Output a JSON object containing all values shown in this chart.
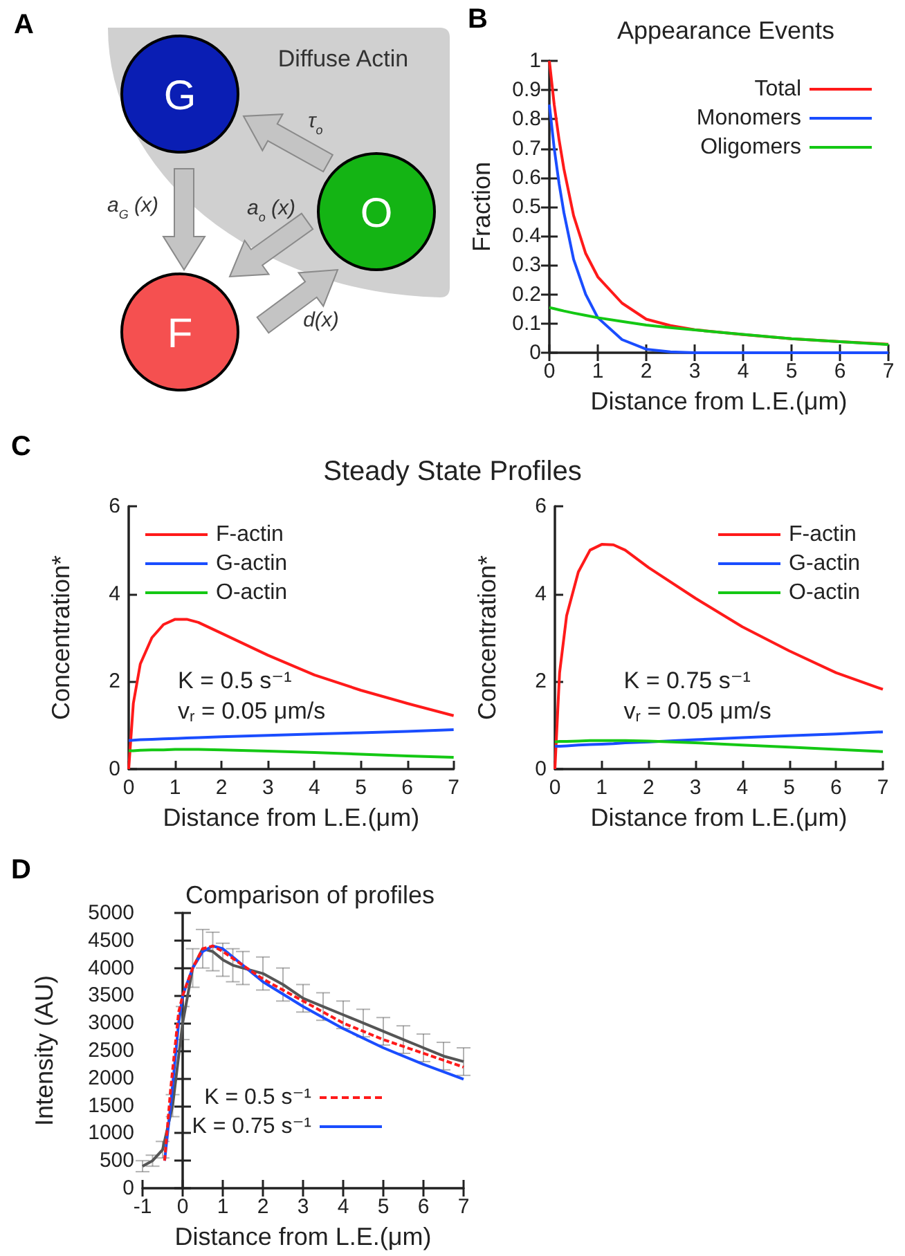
{
  "chart_data": [
    {
      "type": "other",
      "colors": [
        "#0a1eb4",
        "#14b414",
        "#f55050"
      ],
      "annotations": [
        "A",
        "Diffuse Actin",
        "G",
        "O",
        "F",
        "τ$_{o}$",
        "a$_{G}$ (x)",
        "a$_{o}$ (x)",
        "d(x)"
      ]
    },
    {
      "type": "line",
      "title": "Appearance Events",
      "xlabel": "Distance from L.E.(μm)",
      "ylabel": "Fraction",
      "annotations": [
        "B"
      ],
      "x": [
        0,
        0.1,
        0.2,
        0.3,
        0.5,
        0.75,
        1,
        1.5,
        2,
        2.5,
        3,
        4,
        5,
        6,
        7
      ],
      "series": [
        {
          "name": "Total",
          "color": "#ff1a1a",
          "values": [
            1.0,
            0.85,
            0.73,
            0.63,
            0.47,
            0.34,
            0.26,
            0.17,
            0.115,
            0.093,
            0.079,
            0.062,
            0.048,
            0.038,
            0.029
          ]
        },
        {
          "name": "Monomers",
          "color": "#1a4dff",
          "values": [
            0.85,
            0.7,
            0.58,
            0.48,
            0.32,
            0.2,
            0.12,
            0.045,
            0.012,
            0.003,
            0,
            0,
            0,
            0,
            0
          ]
        },
        {
          "name": "Oligomers",
          "color": "#14c814",
          "values": [
            0.155,
            0.151,
            0.147,
            0.143,
            0.136,
            0.128,
            0.12,
            0.107,
            0.095,
            0.086,
            0.078,
            0.063,
            0.048,
            0.038,
            0.028
          ]
        }
      ],
      "xlim": [
        0,
        7
      ],
      "xticks": [
        0,
        1,
        2,
        3,
        4,
        5,
        6,
        7
      ],
      "ylim": [
        0,
        1
      ],
      "yticks": [
        0,
        0.1,
        0.2,
        0.3,
        0.4,
        0.5,
        0.6,
        0.7,
        0.8,
        0.9,
        1
      ],
      "legend": "top right"
    },
    {
      "type": "line",
      "title": "Steady State Profiles",
      "xlabel": "Distance from L.E.(μm)",
      "ylabel": "Concentration*",
      "annotations": [
        "C",
        "K = 0.5 s⁻¹",
        "v$_{r}$ = 0.05 μm/s"
      ],
      "x": [
        0,
        0.1,
        0.25,
        0.5,
        0.75,
        1,
        1.25,
        1.5,
        2,
        3,
        4,
        5,
        6,
        7
      ],
      "series": [
        {
          "name": "F-actin",
          "color": "#ff1a1a",
          "values": [
            0,
            1.5,
            2.4,
            3.0,
            3.3,
            3.42,
            3.42,
            3.35,
            3.1,
            2.6,
            2.15,
            1.8,
            1.5,
            1.22
          ]
        },
        {
          "name": "G-actin",
          "color": "#1a4dff",
          "values": [
            0.65,
            0.66,
            0.67,
            0.68,
            0.69,
            0.7,
            0.71,
            0.72,
            0.74,
            0.77,
            0.8,
            0.83,
            0.86,
            0.9
          ]
        },
        {
          "name": "O-actin",
          "color": "#14c814",
          "values": [
            0.42,
            0.42,
            0.43,
            0.44,
            0.44,
            0.45,
            0.45,
            0.45,
            0.44,
            0.41,
            0.38,
            0.34,
            0.3,
            0.27
          ]
        }
      ],
      "xlim": [
        0,
        7
      ],
      "xticks": [
        0,
        1,
        2,
        3,
        4,
        5,
        6,
        7
      ],
      "ylim": [
        0,
        6
      ],
      "yticks": [
        0,
        2,
        4,
        6
      ],
      "legend": "top left"
    },
    {
      "type": "line",
      "xlabel": "Distance from L.E.(μm)",
      "ylabel": "Concentration*",
      "annotations": [
        "K = 0.75 s⁻¹",
        "v$_{r}$ = 0.05 μm/s"
      ],
      "x": [
        0,
        0.1,
        0.25,
        0.5,
        0.75,
        1,
        1.25,
        1.5,
        2,
        3,
        4,
        5,
        6,
        7
      ],
      "series": [
        {
          "name": "F-actin",
          "color": "#ff1a1a",
          "values": [
            0,
            2.2,
            3.5,
            4.5,
            5.0,
            5.13,
            5.12,
            5.0,
            4.6,
            3.9,
            3.25,
            2.7,
            2.2,
            1.82
          ]
        },
        {
          "name": "G-actin",
          "color": "#1a4dff",
          "values": [
            0.52,
            0.52,
            0.53,
            0.55,
            0.56,
            0.57,
            0.58,
            0.6,
            0.62,
            0.67,
            0.72,
            0.76,
            0.8,
            0.85
          ]
        },
        {
          "name": "O-actin",
          "color": "#14c814",
          "values": [
            0.62,
            0.63,
            0.63,
            0.64,
            0.65,
            0.65,
            0.65,
            0.65,
            0.64,
            0.6,
            0.55,
            0.5,
            0.45,
            0.4
          ]
        }
      ],
      "xlim": [
        0,
        7
      ],
      "xticks": [
        0,
        1,
        2,
        3,
        4,
        5,
        6,
        7
      ],
      "ylim": [
        0,
        6
      ],
      "yticks": [
        0,
        2,
        4,
        6
      ],
      "legend": "top right"
    },
    {
      "type": "line",
      "title": "Comparison of profiles",
      "xlabel": "Distance from L.E.(μm)",
      "ylabel": "Intensity (AU)",
      "annotations": [
        "D"
      ],
      "series": [
        {
          "color": "#555555",
          "x": [
            -1,
            -0.75,
            -0.5,
            -0.25,
            0,
            0.25,
            0.5,
            0.75,
            1,
            1.25,
            1.5,
            2,
            2.5,
            3,
            3.5,
            4,
            4.5,
            5,
            5.5,
            6,
            6.5,
            7
          ],
          "values": [
            400,
            500,
            700,
            1500,
            3000,
            4000,
            4350,
            4300,
            4150,
            4050,
            4000,
            3900,
            3700,
            3450,
            3300,
            3150,
            3000,
            2850,
            2700,
            2550,
            2400,
            2300
          ],
          "errors": [
            100,
            100,
            150,
            200,
            300,
            350,
            350,
            350,
            300,
            300,
            300,
            300,
            300,
            250,
            250,
            250,
            250,
            250,
            250,
            250,
            250,
            250
          ]
        },
        {
          "name": "K = 0.5 s⁻¹",
          "color": "#ff1a1a",
          "line_style": "dashed",
          "x": [
            -0.45,
            -0.3,
            -0.1,
            0,
            0.25,
            0.5,
            0.75,
            1,
            1.5,
            2,
            3,
            4,
            5,
            6,
            7
          ],
          "values": [
            500,
            1800,
            3200,
            3500,
            4000,
            4350,
            4400,
            4300,
            4050,
            3800,
            3400,
            3000,
            2700,
            2450,
            2200
          ]
        },
        {
          "name": "K = 0.75 s⁻¹",
          "color": "#1a4dff",
          "x": [
            -0.45,
            -0.3,
            -0.1,
            0,
            0.25,
            0.5,
            0.75,
            1,
            1.5,
            2,
            3,
            4,
            5,
            6,
            7
          ],
          "values": [
            500,
            1500,
            3000,
            3500,
            4000,
            4300,
            4400,
            4350,
            4050,
            3750,
            3300,
            2900,
            2550,
            2250,
            1980
          ]
        }
      ],
      "xlim": [
        -1,
        7
      ],
      "xticks": [
        -1,
        0,
        1,
        2,
        3,
        4,
        5,
        6,
        7
      ],
      "ylim": [
        0,
        5000
      ],
      "yticks": [
        0,
        500,
        1000,
        1500,
        2000,
        2500,
        3000,
        3500,
        4000,
        4500,
        5000
      ],
      "legend": "bottom"
    }
  ]
}
